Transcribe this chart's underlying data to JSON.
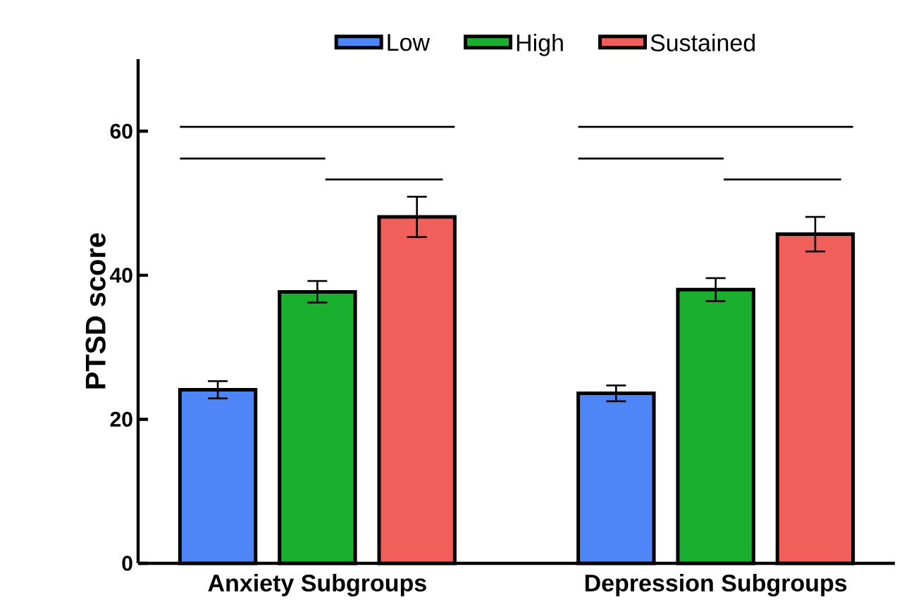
{
  "chart_data": {
    "type": "bar",
    "ylabel": "PTSD score",
    "categories": [
      "Anxiety Subgroups",
      "Depression Subgroups"
    ],
    "series": [
      {
        "name": "Low",
        "color": "#4f86f7",
        "values": [
          24.1,
          23.6
        ],
        "errors": [
          1.2,
          1.1
        ]
      },
      {
        "name": "High",
        "color": "#1aaf2e",
        "values": [
          37.7,
          38.0
        ],
        "errors": [
          1.5,
          1.6
        ]
      },
      {
        "name": "Sustained",
        "color": "#f05f5a",
        "values": [
          48.1,
          45.7
        ],
        "errors": [
          2.8,
          2.4
        ]
      }
    ],
    "ylim": [
      0,
      70
    ],
    "yticks": [
      0,
      20,
      40,
      60
    ],
    "grid": false,
    "legend": "top"
  }
}
